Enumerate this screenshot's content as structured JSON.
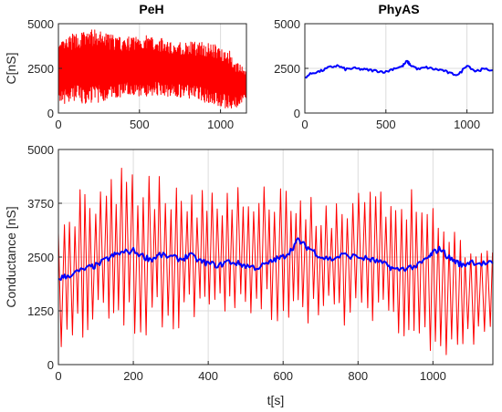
{
  "chart_data": [
    {
      "type": "line",
      "title": "PeH",
      "xlabel": "",
      "ylabel": "C[nS]",
      "xlim": [
        0,
        1160
      ],
      "ylim": [
        0,
        5000
      ],
      "xticks": [
        0,
        500,
        1000
      ],
      "yticks": [
        0,
        2500,
        5000
      ],
      "grid": true,
      "series": [
        {
          "color": "#ff0000",
          "style": "dense oscillation",
          "envelope_upper": {
            "t": [
              0,
              100,
              200,
              300,
              400,
              500,
              600,
              700,
              800,
              900,
              1000,
              1050,
              1100,
              1160
            ],
            "v": [
              3900,
              4500,
              4700,
              4500,
              4200,
              4400,
              4300,
              4000,
              4000,
              4000,
              3800,
              3600,
              2800,
              2500
            ]
          },
          "envelope_lower": {
            "t": [
              0,
              100,
              200,
              300,
              400,
              500,
              600,
              700,
              800,
              900,
              1000,
              1050,
              1100,
              1160
            ],
            "v": [
              400,
              600,
              500,
              700,
              900,
              900,
              1000,
              900,
              800,
              600,
              300,
              200,
              300,
              700
            ]
          }
        }
      ]
    },
    {
      "type": "line",
      "title": "PhyAS",
      "xlabel": "",
      "ylabel": "",
      "xlim": [
        0,
        1160
      ],
      "ylim": [
        0,
        5000
      ],
      "xticks": [
        0,
        500,
        1000
      ],
      "yticks": [
        0,
        2500,
        5000
      ],
      "grid": true,
      "series": [
        {
          "color": "#0000ff",
          "t": [
            0,
            50,
            100,
            150,
            200,
            250,
            300,
            350,
            400,
            450,
            500,
            550,
            600,
            630,
            650,
            700,
            750,
            800,
            850,
            900,
            950,
            1000,
            1050,
            1100,
            1160
          ],
          "v": [
            2000,
            2250,
            2350,
            2550,
            2650,
            2450,
            2500,
            2450,
            2400,
            2350,
            2300,
            2500,
            2600,
            2900,
            2700,
            2450,
            2550,
            2450,
            2400,
            2200,
            2150,
            2700,
            2350,
            2450,
            2400
          ]
        }
      ]
    },
    {
      "type": "line",
      "title": "",
      "xlabel": "t[s]",
      "ylabel": "Conductance [nS]",
      "xlim": [
        0,
        1160
      ],
      "ylim": [
        0,
        5000
      ],
      "xticks": [
        0,
        200,
        400,
        600,
        800,
        1000
      ],
      "yticks": [
        0,
        1250,
        2500,
        3750,
        5000
      ],
      "grid": true,
      "series": [
        {
          "color": "#ff0000",
          "style": "periodic oscillation",
          "period_s": 14,
          "envelope_upper": {
            "t": [
              0,
              50,
              100,
              150,
              200,
              250,
              300,
              350,
              400,
              450,
              500,
              550,
              600,
              650,
              700,
              750,
              800,
              850,
              900,
              950,
              1000,
              1050,
              1100,
              1160
            ],
            "v": [
              3900,
              4100,
              4300,
              4550,
              4650,
              4450,
              4300,
              4200,
              4200,
              4300,
              4350,
              4300,
              4200,
              4000,
              3800,
              3900,
              4000,
              4050,
              4100,
              4300,
              3800,
              3500,
              2800,
              2700
            ]
          },
          "envelope_lower": {
            "t": [
              0,
              50,
              100,
              150,
              200,
              250,
              300,
              350,
              400,
              450,
              500,
              550,
              600,
              650,
              700,
              750,
              800,
              850,
              900,
              950,
              1000,
              1050,
              1100,
              1160
            ],
            "v": [
              400,
              500,
              600,
              550,
              500,
              700,
              800,
              850,
              900,
              900,
              950,
              950,
              1000,
              950,
              900,
              850,
              800,
              700,
              600,
              400,
              200,
              150,
              300,
              600
            ]
          }
        },
        {
          "color": "#0000ff",
          "t": [
            0,
            20,
            50,
            80,
            100,
            130,
            150,
            170,
            200,
            230,
            250,
            270,
            300,
            330,
            350,
            380,
            400,
            430,
            450,
            480,
            500,
            530,
            560,
            580,
            600,
            620,
            640,
            660,
            680,
            700,
            730,
            760,
            800,
            830,
            850,
            880,
            900,
            930,
            960,
            990,
            1000,
            1020,
            1040,
            1060,
            1080,
            1100,
            1130,
            1160
          ],
          "v": [
            2000,
            2050,
            2150,
            2250,
            2300,
            2450,
            2550,
            2600,
            2650,
            2500,
            2450,
            2550,
            2500,
            2450,
            2550,
            2400,
            2350,
            2300,
            2400,
            2350,
            2300,
            2250,
            2350,
            2450,
            2500,
            2650,
            2900,
            2750,
            2650,
            2500,
            2450,
            2550,
            2500,
            2450,
            2400,
            2300,
            2200,
            2250,
            2300,
            2500,
            2600,
            2700,
            2500,
            2400,
            2300,
            2400,
            2350,
            2350
          ]
        }
      ]
    }
  ]
}
